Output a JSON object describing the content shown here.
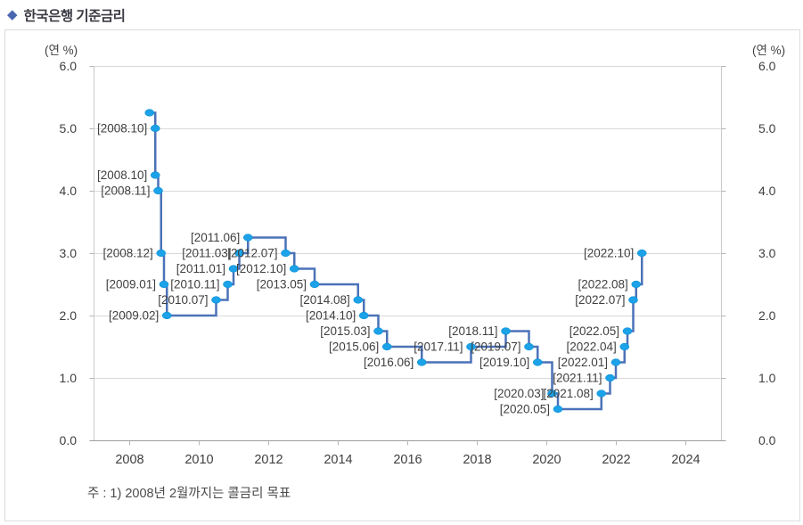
{
  "header": {
    "bullet": "◆",
    "title": "한국은행 기준금리"
  },
  "chart_data": {
    "type": "line",
    "subtype": "step-after",
    "title": "한국은행 기준금리",
    "unit_label_left": "(연 %)",
    "unit_label_right": "(연 %)",
    "ylim": [
      0.0,
      6.0
    ],
    "ytick_step": 1.0,
    "ytick_labels": [
      "0.0",
      "1.0",
      "2.0",
      "3.0",
      "4.0",
      "5.0",
      "6.0"
    ],
    "xtick_labels": [
      "2008",
      "2010",
      "2012",
      "2014",
      "2016",
      "2018",
      "2020",
      "2022",
      "2024"
    ],
    "x_axis_year_start": 2007,
    "grid": "horizontal",
    "legend_position": "none",
    "dual_y_axis": true,
    "note": "주 : 1) 2008년 2월까지는 콜금리 목표",
    "colors": {
      "line": "#4b72b8",
      "marker": "#1ba2e8",
      "marker_edge": "#0e8fd4",
      "grid": "#d9d9d9",
      "axis_side": "#c9c9c9",
      "axis_bottom": "#9d9d9d",
      "tick": "#b5b5b5",
      "text": "#3f3f3f",
      "note_text": "#4b4b4b"
    },
    "series": [
      {
        "name": "한국은행 기준금리",
        "points": [
          {
            "date": "2008.08",
            "value": 5.25,
            "label": ""
          },
          {
            "date": "2008.10",
            "value": 5.0,
            "label": "[2008.10]"
          },
          {
            "date": "2008.10",
            "value": 4.25,
            "label": "[2008.10]"
          },
          {
            "date": "2008.11",
            "value": 4.0,
            "label": "[2008.11]"
          },
          {
            "date": "2008.12",
            "value": 3.0,
            "label": "[2008.12]"
          },
          {
            "date": "2009.01",
            "value": 2.5,
            "label": "[2009.01]"
          },
          {
            "date": "2009.02",
            "value": 2.0,
            "label": "[2009.02]"
          },
          {
            "date": "2010.07",
            "value": 2.25,
            "label": "[2010.07]"
          },
          {
            "date": "2010.11",
            "value": 2.5,
            "label": "[2010.11]"
          },
          {
            "date": "2011.01",
            "value": 2.75,
            "label": "[2011.01]"
          },
          {
            "date": "2011.03",
            "value": 3.0,
            "label": "[2011.03]"
          },
          {
            "date": "2011.06",
            "value": 3.25,
            "label": "[2011.06]"
          },
          {
            "date": "2012.07",
            "value": 3.0,
            "label": "[2012.07]"
          },
          {
            "date": "2012.10",
            "value": 2.75,
            "label": "[2012.10]"
          },
          {
            "date": "2013.05",
            "value": 2.5,
            "label": "[2013.05]"
          },
          {
            "date": "2014.08",
            "value": 2.25,
            "label": "[2014.08]"
          },
          {
            "date": "2014.10",
            "value": 2.0,
            "label": "[2014.10]"
          },
          {
            "date": "2015.03",
            "value": 1.75,
            "label": "[2015.03]"
          },
          {
            "date": "2015.06",
            "value": 1.5,
            "label": "[2015.06]"
          },
          {
            "date": "2016.06",
            "value": 1.25,
            "label": "[2016.06]"
          },
          {
            "date": "2017.11",
            "value": 1.5,
            "label": "[2017.11]"
          },
          {
            "date": "2018.11",
            "value": 1.75,
            "label": "[2018.11]"
          },
          {
            "date": "2019.07",
            "value": 1.5,
            "label": "[2019.07]"
          },
          {
            "date": "2019.10",
            "value": 1.25,
            "label": "[2019.10]"
          },
          {
            "date": "2020.03",
            "value": 0.75,
            "label": "[2020.03]"
          },
          {
            "date": "2020.05",
            "value": 0.5,
            "label": "[2020.05]"
          },
          {
            "date": "2021.08",
            "value": 0.75,
            "label": "[2021.08]"
          },
          {
            "date": "2021.11",
            "value": 1.0,
            "label": "[2021.11]"
          },
          {
            "date": "2022.01",
            "value": 1.25,
            "label": "[2022.01]"
          },
          {
            "date": "2022.04",
            "value": 1.5,
            "label": "[2022.04]"
          },
          {
            "date": "2022.05",
            "value": 1.75,
            "label": "[2022.05]"
          },
          {
            "date": "2022.07",
            "value": 2.25,
            "label": "[2022.07]"
          },
          {
            "date": "2022.08",
            "value": 2.5,
            "label": "[2022.08]"
          },
          {
            "date": "2022.10",
            "value": 3.0,
            "label": "[2022.10]"
          }
        ]
      }
    ]
  }
}
